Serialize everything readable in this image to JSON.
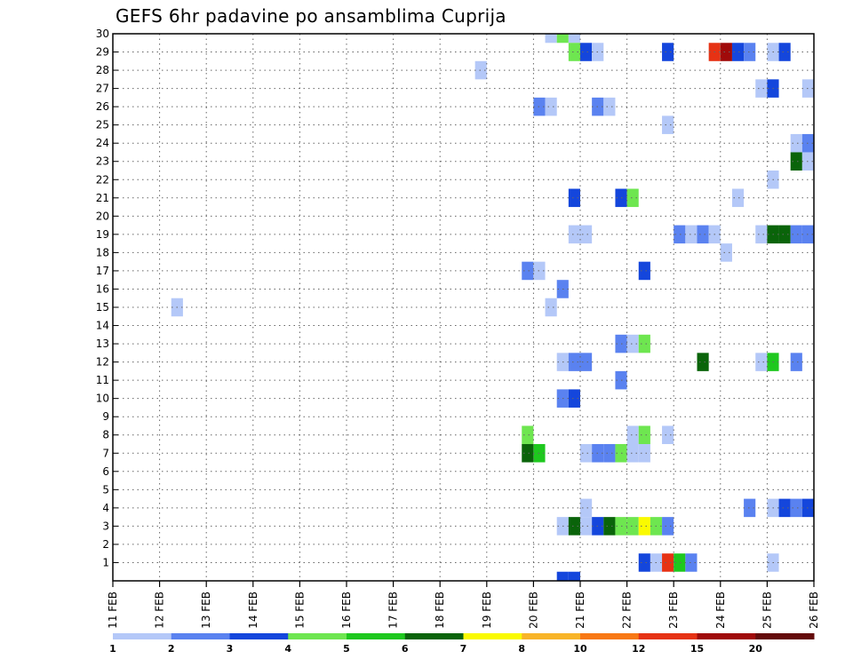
{
  "chart_data": {
    "type": "heatmap",
    "title": "GEFS 6hr padavine po ansamblima Cuprija",
    "xlabel": "",
    "ylabel": "",
    "x_tick_labels": [
      "11 FEB",
      "12 FEB",
      "13 FEB",
      "14 FEB",
      "15 FEB",
      "16 FEB",
      "17 FEB",
      "18 FEB",
      "19 FEB",
      "20 FEB",
      "21 FEB",
      "22 FEB",
      "23 FEB",
      "24 FEB",
      "25 FEB",
      "26 FEB"
    ],
    "y_tick_labels": [
      "1",
      "2",
      "3",
      "4",
      "5",
      "6",
      "7",
      "8",
      "9",
      "10",
      "11",
      "12",
      "13",
      "14",
      "15",
      "16",
      "17",
      "18",
      "19",
      "20",
      "21",
      "22",
      "23",
      "24",
      "25",
      "26",
      "27",
      "28",
      "29",
      "30"
    ],
    "xlim_days": [
      11,
      26
    ],
    "ylim_members": [
      0,
      30
    ],
    "time_step_hours": 6,
    "grid": true,
    "legend_placement": "bottom",
    "legend": {
      "labels": [
        "1",
        "2",
        "3",
        "4",
        "5",
        "6",
        "7",
        "8",
        "10",
        "12",
        "15",
        "20"
      ],
      "colors": [
        "#b4c8f8",
        "#5a82f0",
        "#1446dc",
        "#6ee650",
        "#1ec81e",
        "#0a640a",
        "#fafa00",
        "#f8b428",
        "#f87814",
        "#e63214",
        "#a00a0a",
        "#640a0a"
      ]
    },
    "cells_note": "each cell: day (FEB), hour (UTC), member, precip class index into legend colors",
    "cells": [
      {
        "day": 20,
        "hour": 6,
        "member": 30,
        "cls": 0
      },
      {
        "day": 20,
        "hour": 12,
        "member": 30,
        "cls": 3
      },
      {
        "day": 20,
        "hour": 18,
        "member": 30,
        "cls": 0
      },
      {
        "day": 20,
        "hour": 18,
        "member": 29,
        "cls": 3
      },
      {
        "day": 21,
        "hour": 0,
        "member": 29,
        "cls": 2
      },
      {
        "day": 21,
        "hour": 6,
        "member": 29,
        "cls": 0
      },
      {
        "day": 22,
        "hour": 18,
        "member": 29,
        "cls": 2
      },
      {
        "day": 23,
        "hour": 18,
        "member": 29,
        "cls": 9
      },
      {
        "day": 24,
        "hour": 0,
        "member": 29,
        "cls": 10
      },
      {
        "day": 24,
        "hour": 6,
        "member": 29,
        "cls": 2
      },
      {
        "day": 24,
        "hour": 12,
        "member": 29,
        "cls": 1
      },
      {
        "day": 25,
        "hour": 0,
        "member": 29,
        "cls": 0
      },
      {
        "day": 25,
        "hour": 6,
        "member": 29,
        "cls": 2
      },
      {
        "day": 18,
        "hour": 18,
        "member": 28,
        "cls": 0
      },
      {
        "day": 24,
        "hour": 18,
        "member": 27,
        "cls": 0
      },
      {
        "day": 25,
        "hour": 0,
        "member": 27,
        "cls": 2
      },
      {
        "day": 25,
        "hour": 18,
        "member": 27,
        "cls": 0
      },
      {
        "day": 20,
        "hour": 0,
        "member": 26,
        "cls": 1
      },
      {
        "day": 20,
        "hour": 6,
        "member": 26,
        "cls": 0
      },
      {
        "day": 21,
        "hour": 6,
        "member": 26,
        "cls": 1
      },
      {
        "day": 21,
        "hour": 12,
        "member": 26,
        "cls": 0
      },
      {
        "day": 22,
        "hour": 18,
        "member": 25,
        "cls": 0
      },
      {
        "day": 25,
        "hour": 12,
        "member": 24,
        "cls": 0
      },
      {
        "day": 25,
        "hour": 18,
        "member": 24,
        "cls": 1
      },
      {
        "day": 25,
        "hour": 12,
        "member": 23,
        "cls": 5
      },
      {
        "day": 25,
        "hour": 18,
        "member": 23,
        "cls": 0
      },
      {
        "day": 25,
        "hour": 0,
        "member": 22,
        "cls": 0
      },
      {
        "day": 20,
        "hour": 18,
        "member": 21,
        "cls": 2
      },
      {
        "day": 21,
        "hour": 18,
        "member": 21,
        "cls": 2
      },
      {
        "day": 22,
        "hour": 0,
        "member": 21,
        "cls": 3
      },
      {
        "day": 24,
        "hour": 6,
        "member": 21,
        "cls": 0
      },
      {
        "day": 20,
        "hour": 18,
        "member": 19,
        "cls": 0
      },
      {
        "day": 21,
        "hour": 0,
        "member": 19,
        "cls": 0
      },
      {
        "day": 23,
        "hour": 0,
        "member": 19,
        "cls": 1
      },
      {
        "day": 23,
        "hour": 6,
        "member": 19,
        "cls": 0
      },
      {
        "day": 23,
        "hour": 12,
        "member": 19,
        "cls": 1
      },
      {
        "day": 23,
        "hour": 18,
        "member": 19,
        "cls": 0
      },
      {
        "day": 24,
        "hour": 18,
        "member": 19,
        "cls": 0
      },
      {
        "day": 25,
        "hour": 0,
        "member": 19,
        "cls": 5
      },
      {
        "day": 25,
        "hour": 6,
        "member": 19,
        "cls": 5
      },
      {
        "day": 25,
        "hour": 12,
        "member": 19,
        "cls": 1
      },
      {
        "day": 25,
        "hour": 18,
        "member": 19,
        "cls": 1
      },
      {
        "day": 24,
        "hour": 0,
        "member": 18,
        "cls": 0
      },
      {
        "day": 19,
        "hour": 18,
        "member": 17,
        "cls": 1
      },
      {
        "day": 20,
        "hour": 0,
        "member": 17,
        "cls": 0
      },
      {
        "day": 22,
        "hour": 6,
        "member": 17,
        "cls": 2
      },
      {
        "day": 20,
        "hour": 12,
        "member": 16,
        "cls": 1
      },
      {
        "day": 12,
        "hour": 6,
        "member": 15,
        "cls": 0
      },
      {
        "day": 20,
        "hour": 6,
        "member": 15,
        "cls": 0
      },
      {
        "day": 21,
        "hour": 18,
        "member": 13,
        "cls": 1
      },
      {
        "day": 22,
        "hour": 0,
        "member": 13,
        "cls": 0
      },
      {
        "day": 22,
        "hour": 6,
        "member": 13,
        "cls": 3
      },
      {
        "day": 20,
        "hour": 12,
        "member": 12,
        "cls": 0
      },
      {
        "day": 20,
        "hour": 18,
        "member": 12,
        "cls": 1
      },
      {
        "day": 21,
        "hour": 0,
        "member": 12,
        "cls": 1
      },
      {
        "day": 23,
        "hour": 12,
        "member": 12,
        "cls": 5
      },
      {
        "day": 24,
        "hour": 18,
        "member": 12,
        "cls": 0
      },
      {
        "day": 25,
        "hour": 0,
        "member": 12,
        "cls": 4
      },
      {
        "day": 25,
        "hour": 12,
        "member": 12,
        "cls": 1
      },
      {
        "day": 21,
        "hour": 18,
        "member": 11,
        "cls": 1
      },
      {
        "day": 20,
        "hour": 12,
        "member": 10,
        "cls": 1
      },
      {
        "day": 20,
        "hour": 18,
        "member": 10,
        "cls": 2
      },
      {
        "day": 19,
        "hour": 18,
        "member": 8,
        "cls": 3
      },
      {
        "day": 22,
        "hour": 0,
        "member": 8,
        "cls": 0
      },
      {
        "day": 22,
        "hour": 6,
        "member": 8,
        "cls": 3
      },
      {
        "day": 22,
        "hour": 18,
        "member": 8,
        "cls": 0
      },
      {
        "day": 19,
        "hour": 18,
        "member": 7,
        "cls": 5
      },
      {
        "day": 20,
        "hour": 0,
        "member": 7,
        "cls": 4
      },
      {
        "day": 21,
        "hour": 0,
        "member": 7,
        "cls": 0
      },
      {
        "day": 21,
        "hour": 6,
        "member": 7,
        "cls": 1
      },
      {
        "day": 21,
        "hour": 12,
        "member": 7,
        "cls": 1
      },
      {
        "day": 21,
        "hour": 18,
        "member": 7,
        "cls": 3
      },
      {
        "day": 22,
        "hour": 0,
        "member": 7,
        "cls": 0
      },
      {
        "day": 22,
        "hour": 6,
        "member": 7,
        "cls": 0
      },
      {
        "day": 21,
        "hour": 0,
        "member": 4,
        "cls": 0
      },
      {
        "day": 24,
        "hour": 12,
        "member": 4,
        "cls": 1
      },
      {
        "day": 25,
        "hour": 0,
        "member": 4,
        "cls": 0
      },
      {
        "day": 25,
        "hour": 6,
        "member": 4,
        "cls": 2
      },
      {
        "day": 25,
        "hour": 12,
        "member": 4,
        "cls": 1
      },
      {
        "day": 25,
        "hour": 18,
        "member": 4,
        "cls": 2
      },
      {
        "day": 20,
        "hour": 12,
        "member": 3,
        "cls": 0
      },
      {
        "day": 20,
        "hour": 18,
        "member": 3,
        "cls": 5
      },
      {
        "day": 21,
        "hour": 0,
        "member": 3,
        "cls": 0
      },
      {
        "day": 21,
        "hour": 6,
        "member": 3,
        "cls": 2
      },
      {
        "day": 21,
        "hour": 12,
        "member": 3,
        "cls": 5
      },
      {
        "day": 21,
        "hour": 18,
        "member": 3,
        "cls": 3
      },
      {
        "day": 22,
        "hour": 0,
        "member": 3,
        "cls": 3
      },
      {
        "day": 22,
        "hour": 6,
        "member": 3,
        "cls": 6
      },
      {
        "day": 22,
        "hour": 12,
        "member": 3,
        "cls": 3
      },
      {
        "day": 22,
        "hour": 18,
        "member": 3,
        "cls": 1
      },
      {
        "day": 22,
        "hour": 6,
        "member": 1,
        "cls": 2
      },
      {
        "day": 22,
        "hour": 12,
        "member": 1,
        "cls": 0
      },
      {
        "day": 22,
        "hour": 18,
        "member": 1,
        "cls": 9
      },
      {
        "day": 23,
        "hour": 0,
        "member": 1,
        "cls": 4
      },
      {
        "day": 23,
        "hour": 6,
        "member": 1,
        "cls": 1
      },
      {
        "day": 25,
        "hour": 0,
        "member": 1,
        "cls": 0
      },
      {
        "day": 20,
        "hour": 12,
        "member": 0,
        "cls": 2
      },
      {
        "day": 20,
        "hour": 18,
        "member": 0,
        "cls": 2
      }
    ]
  }
}
